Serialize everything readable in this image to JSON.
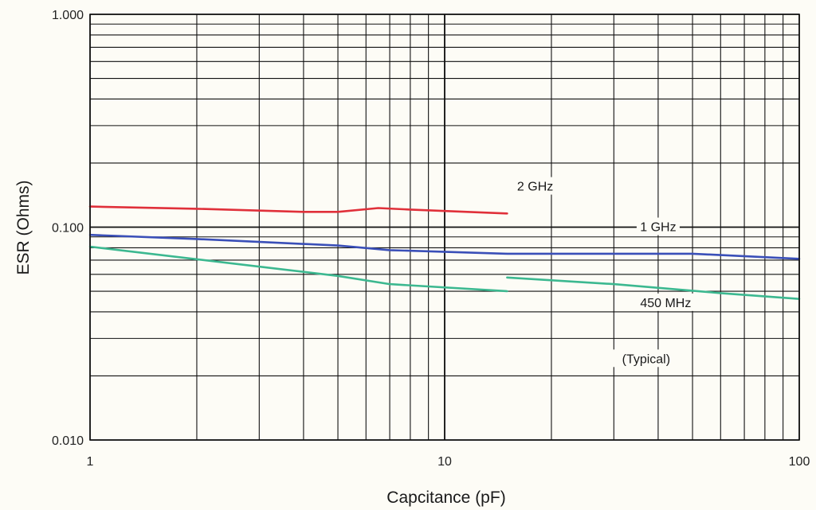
{
  "chart_data": {
    "type": "line",
    "title": "",
    "xlabel": "Capcitance (pF)",
    "ylabel": "ESR (Ohms)",
    "x_scale": "log",
    "y_scale": "log",
    "xlim": [
      1,
      100
    ],
    "ylim": [
      0.01,
      1
    ],
    "grid": true,
    "x_ticks": [
      {
        "value": 1,
        "label": "1"
      },
      {
        "value": 10,
        "label": "10"
      },
      {
        "value": 100,
        "label": "100"
      }
    ],
    "y_ticks": [
      {
        "value": 1,
        "label": "1.000"
      },
      {
        "value": 0.1,
        "label": "0.100"
      },
      {
        "value": 0.01,
        "label": "0.010"
      }
    ],
    "series": [
      {
        "name": "2 GHz",
        "color": "#e0303a",
        "points": [
          [
            1,
            0.125
          ],
          [
            2,
            0.122
          ],
          [
            4,
            0.118
          ],
          [
            5,
            0.118
          ],
          [
            6.5,
            0.123
          ],
          [
            8,
            0.121
          ],
          [
            15,
            0.116
          ]
        ]
      },
      {
        "name": "1 GHz",
        "color": "#3a4fb8",
        "points": [
          [
            1,
            0.092
          ],
          [
            2,
            0.088
          ],
          [
            5,
            0.082
          ],
          [
            7,
            0.078
          ],
          [
            15,
            0.075
          ],
          [
            50,
            0.075
          ],
          [
            100,
            0.071
          ]
        ]
      },
      {
        "name": "450 MHz",
        "color": "#3cb890",
        "segments": [
          [
            [
              1,
              0.081
            ],
            [
              5,
              0.059
            ],
            [
              7,
              0.054
            ],
            [
              15,
              0.05
            ]
          ],
          [
            [
              15,
              0.058
            ],
            [
              30,
              0.054
            ],
            [
              60,
              0.049
            ],
            [
              100,
              0.046
            ]
          ]
        ]
      }
    ],
    "annotations": [
      {
        "text": "2 GHz",
        "x": 18,
        "y": 0.155
      },
      {
        "text": "1 GHz",
        "x": 40,
        "y": 0.1
      },
      {
        "text": "450 MHz",
        "x": 42,
        "y": 0.044
      },
      {
        "text": "(Typical)",
        "x": 37,
        "y": 0.024
      }
    ]
  }
}
